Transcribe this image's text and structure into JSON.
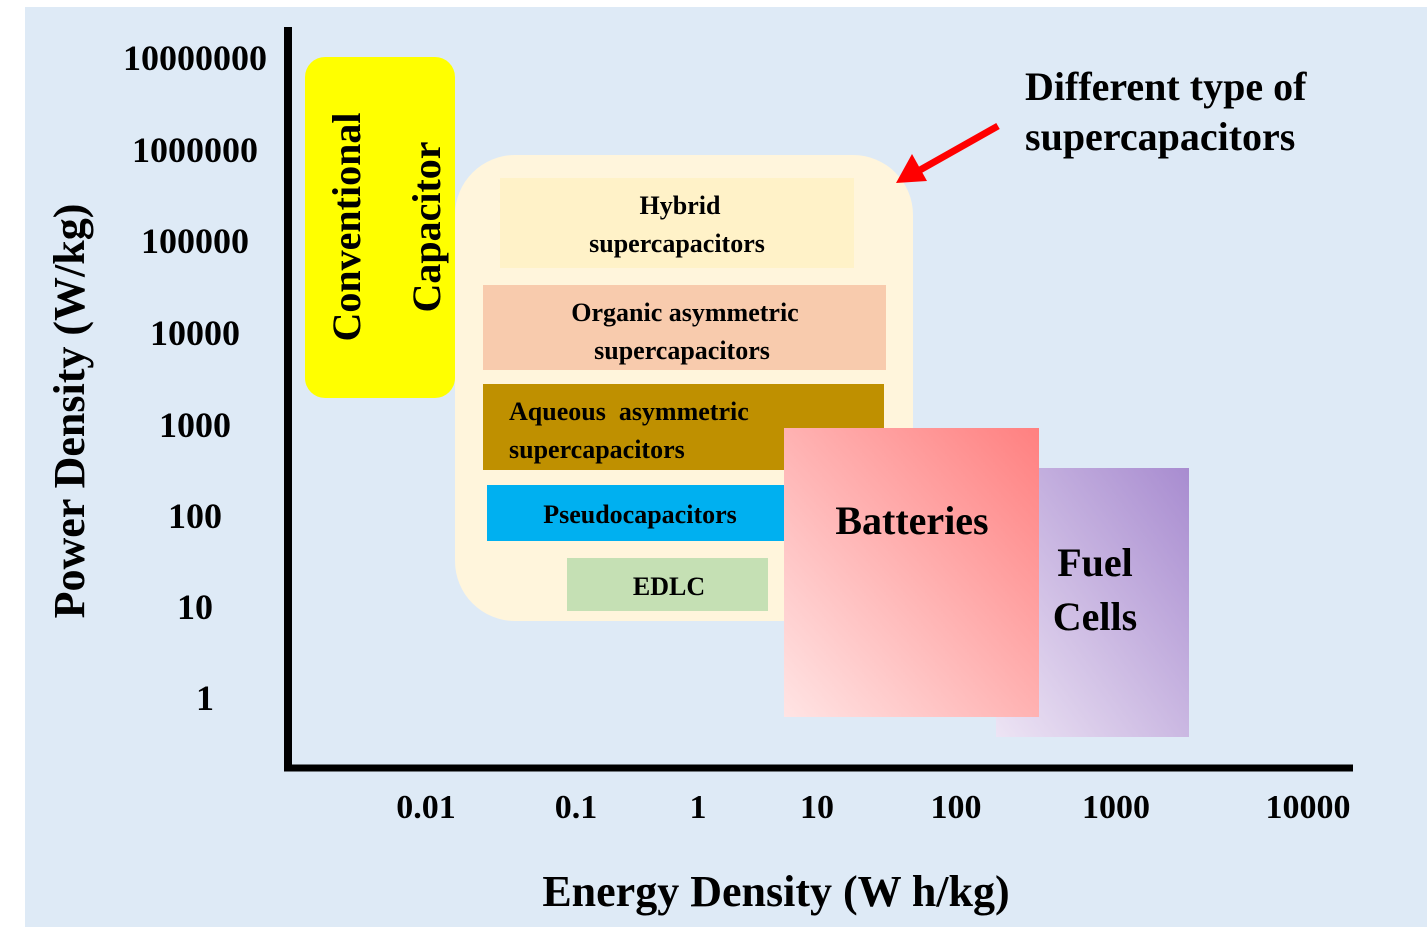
{
  "chart_data": {
    "type": "region",
    "title": "",
    "xlabel": "Energy Density (W h/kg)",
    "ylabel": "Power Density (W/kg)",
    "x_scale": "log",
    "y_scale": "log",
    "x_ticks": [
      "0.01",
      "0.1",
      "1",
      "10",
      "100",
      "1000",
      "10000"
    ],
    "y_ticks": [
      "10000000",
      "1000000",
      "100000",
      "10000",
      "1000",
      "100",
      "10",
      "1"
    ],
    "regions": [
      {
        "label": [
          "Conventional",
          "Capacitor"
        ],
        "x": [
          0.003,
          0.016
        ],
        "y": [
          200,
          10000000
        ],
        "color": "#FFFF00",
        "text_orientation": "vertical"
      },
      {
        "label": [
          "Hybrid",
          "supercapacitors"
        ],
        "x": [
          0.03,
          10
        ],
        "y": [
          50000,
          700000
        ],
        "color": "#FFF2C8"
      },
      {
        "label": [
          "Organic asymmetric",
          "supercapacitors"
        ],
        "x": [
          0.02,
          25
        ],
        "y": [
          2500,
          50000
        ],
        "color": "#F8CBAD"
      },
      {
        "label": [
          "Aqueous  asymmetric",
          "supercapacitors"
        ],
        "x": [
          0.02,
          25
        ],
        "y": [
          250,
          2500
        ],
        "color": "#BF9000"
      },
      {
        "label": [
          "Pseudocapacitors"
        ],
        "x": [
          0.02,
          6
        ],
        "y": [
          40,
          180
        ],
        "color": "#00B0F0"
      },
      {
        "label": [
          "EDLC"
        ],
        "x": [
          0.09,
          5
        ],
        "y": [
          8,
          40
        ],
        "color": "#C5E0B4"
      },
      {
        "label": [
          "Batteries"
        ],
        "x": [
          5,
          300
        ],
        "y": [
          2,
          1000
        ],
        "color": "#FF8080"
      },
      {
        "label": [
          "Fuel",
          "Cells"
        ],
        "x": [
          150,
          2500
        ],
        "y": [
          1,
          400
        ],
        "color": "#B4A0D8"
      }
    ],
    "supercap_group": {
      "x": [
        0.02,
        35
      ],
      "y": [
        5,
        1000000
      ],
      "color": "#FFF5DC"
    },
    "annotation": {
      "text": [
        "Different type of",
        "supercapacitors"
      ],
      "arrow_color": "#FF0000"
    },
    "grid": false,
    "legend": "none"
  },
  "background_color": "#DEEAF6"
}
